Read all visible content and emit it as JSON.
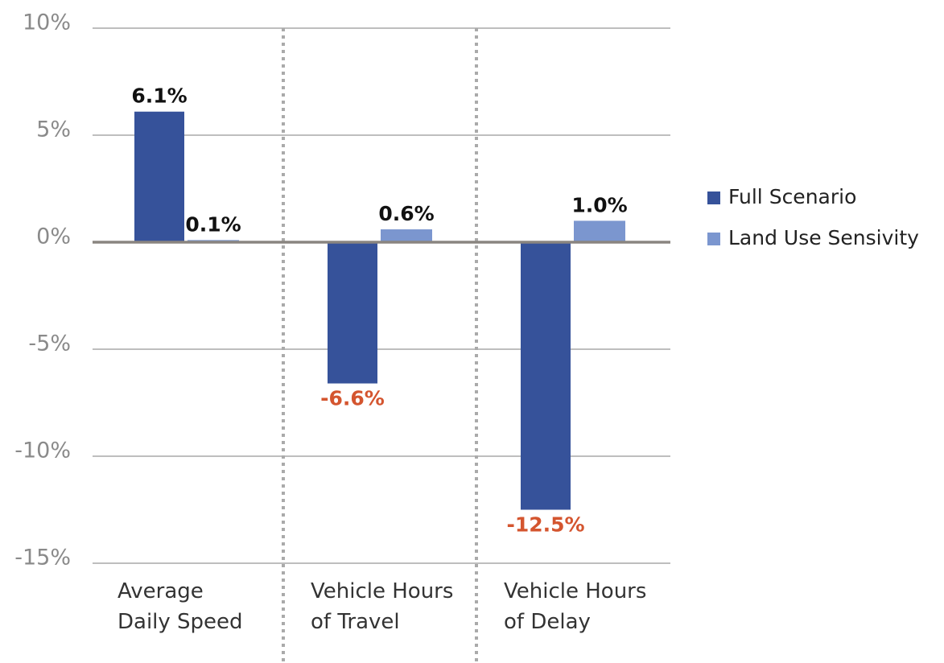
{
  "chart_data": {
    "type": "bar",
    "categories": [
      "Average\nDaily Speed",
      "Vehicle Hours\nof Travel",
      "Vehicle Hours\nof Delay"
    ],
    "series": [
      {
        "name": "Full Scenario",
        "color": "#36529a",
        "values": [
          6.1,
          -6.6,
          -12.5
        ],
        "value_labels": [
          "6.1%",
          "-6.6%",
          "-12.5%"
        ]
      },
      {
        "name": "Land Use Sensivity",
        "color": "#7b96cf",
        "values": [
          0.1,
          0.6,
          1.0
        ],
        "value_labels": [
          "0.1%",
          "0.6%",
          "1.0%"
        ]
      }
    ],
    "ylim": [
      -15,
      10
    ],
    "yticks": [
      {
        "value": 10,
        "label": "10%"
      },
      {
        "value": 5,
        "label": "5%"
      },
      {
        "value": 0,
        "label": "0%"
      },
      {
        "value": -5,
        "label": "-5%"
      },
      {
        "value": -10,
        "label": "-10%"
      },
      {
        "value": -15,
        "label": "-15%"
      }
    ],
    "grid": true,
    "legend": "right"
  }
}
